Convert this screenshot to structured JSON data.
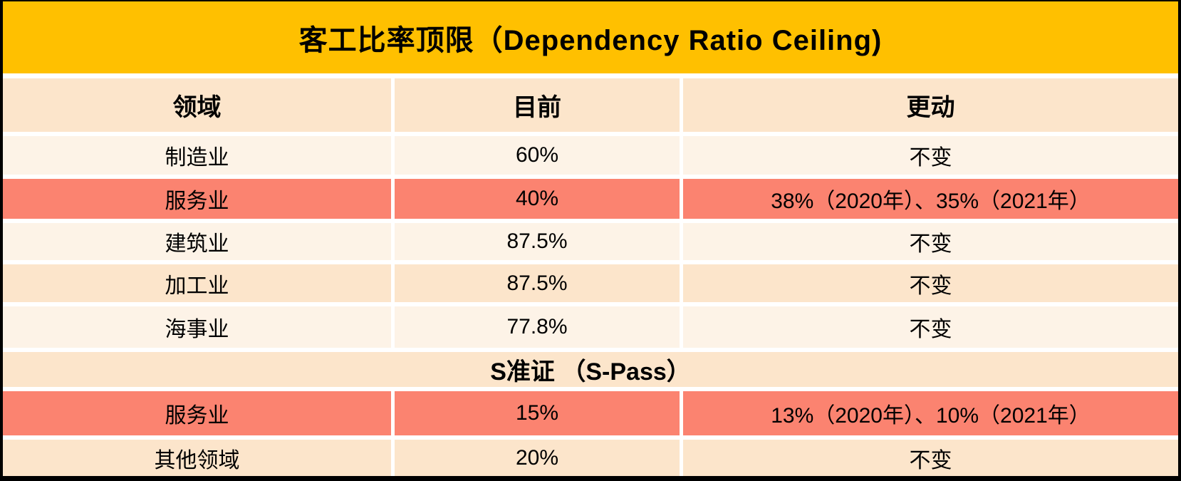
{
  "page": {
    "title": "客工比率顶限（Dependency Ratio Ceiling)"
  },
  "colors": {
    "banner_gold": "#FFC000",
    "band_peach": "#FCE5CB",
    "band_cream": "#FDF3E7",
    "highlight_salmon": "#FB8370",
    "gap_white": "#FFFFFF",
    "frame_black": "#000000",
    "text": "#000000"
  },
  "table": {
    "columns": [
      "领域",
      "目前",
      "更动"
    ],
    "work_permit_rows": [
      {
        "sector": "制造业",
        "current": "60%",
        "change": "不变"
      },
      {
        "sector": "服务业",
        "current": "40%",
        "change": "38%（2020年）、35%（2021年）"
      },
      {
        "sector": "建筑业",
        "current": "87.5%",
        "change": "不变"
      },
      {
        "sector": "加工业",
        "current": "87.5%",
        "change": "不变"
      },
      {
        "sector": "海事业",
        "current": "77.8%",
        "change": "不变"
      }
    ],
    "section_header": "S准证 （S-Pass）",
    "s_pass_rows": [
      {
        "sector": "服务业",
        "current": "15%",
        "change": "13%（2020年）、10%（2021年）"
      },
      {
        "sector": "其他领域",
        "current": "20%",
        "change": "不变"
      }
    ]
  },
  "chart_data": {
    "type": "table",
    "title": "客工比率顶限（Dependency Ratio Ceiling)",
    "columns": [
      "领域",
      "目前",
      "更动"
    ],
    "rows": [
      [
        "制造业",
        "60%",
        "不变"
      ],
      [
        "服务业",
        "40%",
        "38%（2020年）、35%（2021年）"
      ],
      [
        "建筑业",
        "87.5%",
        "不变"
      ],
      [
        "加工业",
        "87.5%",
        "不变"
      ],
      [
        "海事业",
        "77.8%",
        "不变"
      ],
      [
        "S准证 （S-Pass）",
        "",
        ""
      ],
      [
        "服务业",
        "15%",
        "13%（2020年）、10%（2021年）"
      ],
      [
        "其他领域",
        "20%",
        "不变"
      ]
    ],
    "section_header_row_index": 5,
    "highlighted_row_indexes": [
      1,
      6
    ],
    "legend_position": "none",
    "grid": "banded-rows"
  }
}
